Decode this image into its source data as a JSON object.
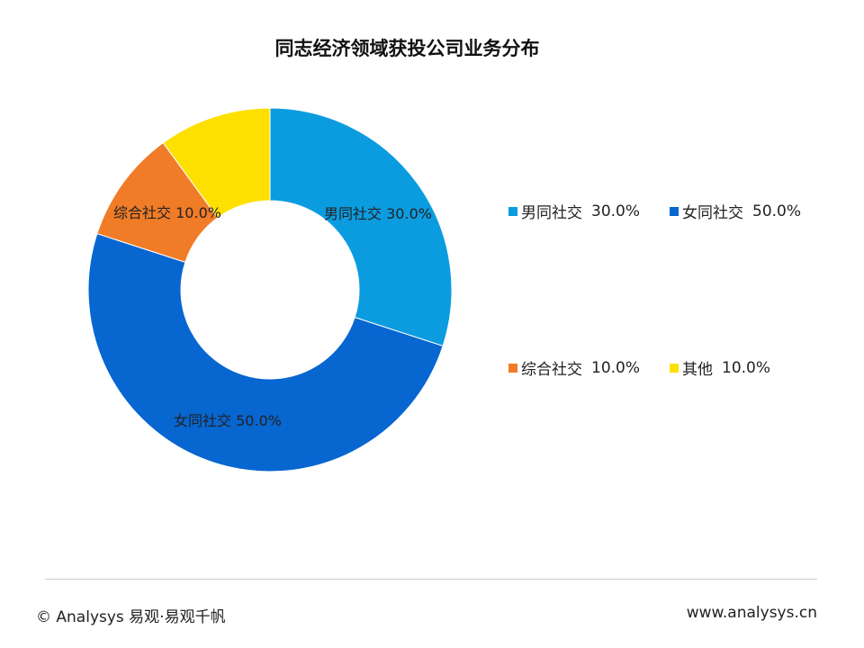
{
  "chart_data": {
    "type": "pie",
    "title": "同志经济领域获投公司业务分布",
    "donut": true,
    "slices": [
      {
        "name": "男同社交",
        "value": 30.0,
        "label": "30.0%",
        "color": "#0b9ce0"
      },
      {
        "name": "女同社交",
        "value": 50.0,
        "label": "50.0%",
        "color": "#0766d0"
      },
      {
        "name": "综合社交",
        "value": 10.0,
        "label": "10.0%",
        "color": "#f07c27"
      },
      {
        "name": "其他",
        "value": 10.0,
        "label": "10.0%",
        "color": "#fee000"
      }
    ],
    "legend_position": "right"
  },
  "footer": {
    "copyright": "© Analysys 易观·易观千帆",
    "website": "www.analysys.cn"
  }
}
